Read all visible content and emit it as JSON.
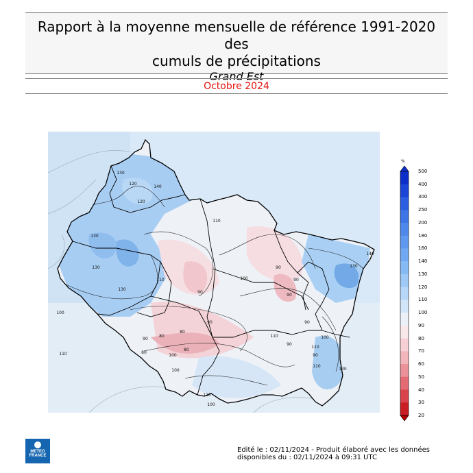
{
  "header": {
    "title_line1": "Rapport à la moyenne mensuelle de référence 1991-2020 des",
    "title_line2": "cumuls de précipitations",
    "region": "Grand Est",
    "period": "Octobre 2024"
  },
  "legend": {
    "unit": "%",
    "stops": [
      {
        "label": "500",
        "color": "#0b2fc8"
      },
      {
        "label": "400",
        "color": "#1a45d6"
      },
      {
        "label": "300",
        "color": "#2b5ee0"
      },
      {
        "label": "250",
        "color": "#3d74e6"
      },
      {
        "label": "200",
        "color": "#4e88eb"
      },
      {
        "label": "180",
        "color": "#5e99ef"
      },
      {
        "label": "160",
        "color": "#70a9f2"
      },
      {
        "label": "140",
        "color": "#86baf5"
      },
      {
        "label": "130",
        "color": "#9ec9f7"
      },
      {
        "label": "120",
        "color": "#b7d7f8"
      },
      {
        "label": "110",
        "color": "#d2e6f9"
      },
      {
        "label": "100",
        "color": "#eaf1f8"
      },
      {
        "label": "90",
        "color": "#f8e8ea"
      },
      {
        "label": "80",
        "color": "#f6d0d4"
      },
      {
        "label": "70",
        "color": "#f1b5bb"
      },
      {
        "label": "60",
        "color": "#ec9199"
      },
      {
        "label": "50",
        "color": "#e46b74"
      },
      {
        "label": "40",
        "color": "#d9434b"
      },
      {
        "label": "30",
        "color": "#c91f24"
      },
      {
        "label": "20",
        "color": "#b30000"
      }
    ]
  },
  "map": {
    "contour_labels": [
      "130",
      "130",
      "120",
      "140",
      "120",
      "110",
      "130",
      "130",
      "110",
      "90",
      "90",
      "100",
      "90",
      "90",
      "80",
      "90",
      "100",
      "110",
      "130",
      "140",
      "100",
      "90",
      "80",
      "80",
      "80",
      "110",
      "90",
      "90",
      "100",
      "110",
      "130",
      "110",
      "90",
      "110",
      "100",
      "100"
    ]
  },
  "logo": {
    "line1": "METEO",
    "line2": "FRANCE"
  },
  "footer": {
    "line1": "Edité le : 02/11/2024 - Produit élaboré avec les données",
    "line2": "disponibles du : 02/11/2024 à 09:31 UTC"
  }
}
